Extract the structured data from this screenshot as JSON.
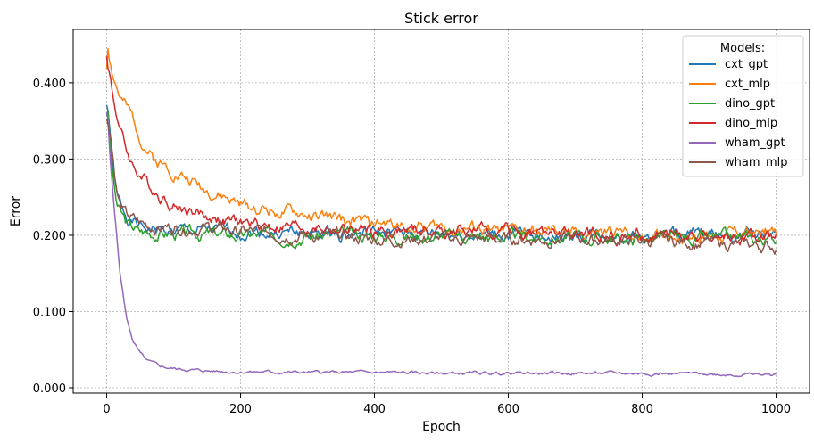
{
  "chart_data": {
    "type": "line",
    "title": "Stick error",
    "xlabel": "Epoch",
    "ylabel": "Error",
    "xlim": [
      -50,
      1050
    ],
    "ylim": [
      -0.007,
      0.47
    ],
    "xticks": [
      0,
      200,
      400,
      600,
      800,
      1000
    ],
    "xtick_labels": [
      "0",
      "200",
      "400",
      "600",
      "800",
      "1000"
    ],
    "yticks": [
      0.0,
      0.1,
      0.2,
      0.3,
      0.4
    ],
    "ytick_labels": [
      "0.000",
      "0.100",
      "0.200",
      "0.300",
      "0.400"
    ],
    "grid": true,
    "legend": {
      "title": "Models:",
      "position": "top-right"
    },
    "series": [
      {
        "name": "cxt_gpt",
        "color": "#1f77b4",
        "x": [
          0,
          2,
          5,
          10,
          15,
          20,
          30,
          40,
          50,
          70,
          100,
          150,
          200,
          300,
          400,
          500,
          600,
          700,
          800,
          900,
          1000
        ],
        "y": [
          0.37,
          0.365,
          0.33,
          0.28,
          0.25,
          0.24,
          0.225,
          0.218,
          0.21,
          0.207,
          0.205,
          0.205,
          0.205,
          0.203,
          0.202,
          0.202,
          0.2,
          0.2,
          0.2,
          0.2,
          0.2
        ]
      },
      {
        "name": "cxt_mlp",
        "color": "#ff7f0e",
        "x": [
          0,
          2,
          5,
          10,
          15,
          20,
          30,
          40,
          50,
          70,
          100,
          150,
          200,
          300,
          400,
          500,
          600,
          700,
          800,
          900,
          1000
        ],
        "y": [
          0.42,
          0.45,
          0.43,
          0.41,
          0.395,
          0.38,
          0.365,
          0.35,
          0.33,
          0.3,
          0.285,
          0.26,
          0.24,
          0.225,
          0.215,
          0.21,
          0.205,
          0.203,
          0.2,
          0.2,
          0.205
        ]
      },
      {
        "name": "dino_gpt",
        "color": "#2ca02c",
        "x": [
          0,
          2,
          5,
          10,
          15,
          20,
          30,
          40,
          50,
          70,
          100,
          150,
          200,
          300,
          400,
          500,
          600,
          700,
          800,
          900,
          1000
        ],
        "y": [
          0.36,
          0.36,
          0.32,
          0.27,
          0.24,
          0.23,
          0.215,
          0.21,
          0.205,
          0.203,
          0.202,
          0.202,
          0.2,
          0.2,
          0.2,
          0.2,
          0.198,
          0.196,
          0.196,
          0.196,
          0.195
        ]
      },
      {
        "name": "dino_mlp",
        "color": "#d62728",
        "x": [
          0,
          2,
          5,
          10,
          15,
          20,
          30,
          40,
          50,
          70,
          100,
          150,
          200,
          300,
          400,
          500,
          600,
          700,
          800,
          900,
          1000
        ],
        "y": [
          0.44,
          0.42,
          0.41,
          0.38,
          0.36,
          0.34,
          0.31,
          0.29,
          0.28,
          0.26,
          0.24,
          0.225,
          0.215,
          0.21,
          0.205,
          0.205,
          0.205,
          0.2,
          0.198,
          0.198,
          0.195
        ]
      },
      {
        "name": "wham_gpt",
        "color": "#9467bd",
        "x": [
          0,
          2,
          5,
          10,
          15,
          20,
          25,
          30,
          40,
          50,
          60,
          80,
          100,
          150,
          200,
          300,
          400,
          500,
          600,
          700,
          800,
          900,
          1000
        ],
        "y": [
          0.36,
          0.35,
          0.3,
          0.25,
          0.2,
          0.15,
          0.12,
          0.09,
          0.06,
          0.045,
          0.035,
          0.028,
          0.025,
          0.022,
          0.021,
          0.02,
          0.02,
          0.019,
          0.019,
          0.019,
          0.019,
          0.018,
          0.017
        ]
      },
      {
        "name": "wham_mlp",
        "color": "#8c564b",
        "x": [
          0,
          2,
          5,
          10,
          15,
          20,
          30,
          40,
          50,
          70,
          100,
          150,
          200,
          300,
          400,
          500,
          600,
          700,
          800,
          900,
          1000
        ],
        "y": [
          0.35,
          0.345,
          0.34,
          0.3,
          0.26,
          0.24,
          0.225,
          0.22,
          0.215,
          0.212,
          0.21,
          0.21,
          0.205,
          0.2,
          0.195,
          0.195,
          0.195,
          0.195,
          0.193,
          0.19,
          0.185
        ]
      }
    ]
  }
}
